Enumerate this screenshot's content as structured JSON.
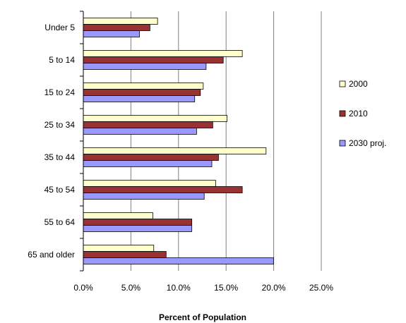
{
  "chart_data": {
    "type": "bar",
    "orientation": "horizontal",
    "title": "",
    "xlabel": "Percent of Population",
    "ylabel": "",
    "xlim": [
      0,
      25
    ],
    "x_ticks": [
      0,
      5,
      10,
      15,
      20,
      25
    ],
    "x_tick_labels": [
      "0.0%",
      "5.0%",
      "10.0%",
      "15.0%",
      "20.0%",
      "25.0%"
    ],
    "grid": true,
    "legend_position": "right",
    "categories": [
      "Under 5",
      "5 to 14",
      "15 to 24",
      "25 to 34",
      "35 to 44",
      "45 to 54",
      "55 to 64",
      "65 and older"
    ],
    "series": [
      {
        "name": "2000",
        "color": "#FFFFCC",
        "values": [
          7.8,
          16.7,
          12.6,
          15.1,
          19.2,
          13.9,
          7.3,
          7.4
        ]
      },
      {
        "name": "2010",
        "color": "#993333",
        "values": [
          7.0,
          14.7,
          12.3,
          13.6,
          14.2,
          16.7,
          11.4,
          8.7
        ]
      },
      {
        "name": "2030 proj.",
        "color": "#9999FF",
        "values": [
          5.9,
          12.9,
          11.7,
          11.9,
          13.5,
          12.7,
          11.4,
          20.0
        ]
      }
    ]
  }
}
